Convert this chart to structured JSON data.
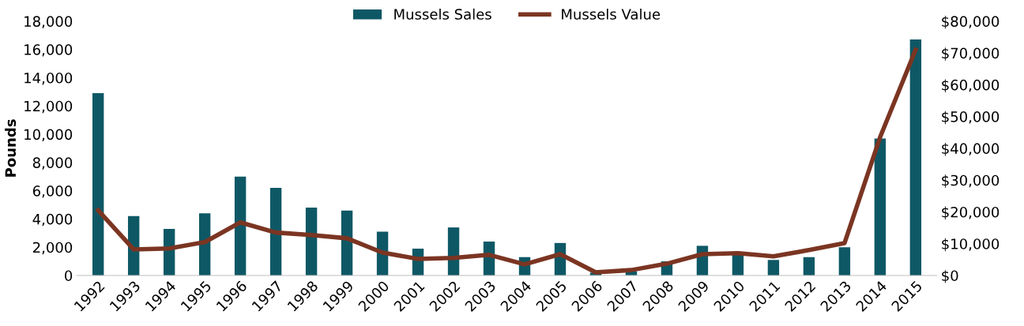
{
  "chart_data": {
    "type": "bar",
    "ylabel": "Pounds",
    "categories": [
      "1992",
      "1993",
      "1994",
      "1995",
      "1996",
      "1997",
      "1998",
      "1999",
      "2000",
      "2001",
      "2002",
      "2003",
      "2004",
      "2005",
      "2006",
      "2007",
      "2008",
      "2009",
      "2010",
      "2011",
      "2012",
      "2013",
      "2014",
      "2015"
    ],
    "series": [
      {
        "name": "Mussels Sales",
        "color": "#0e5866",
        "values": [
          12900,
          4200,
          3300,
          4400,
          7000,
          6200,
          4800,
          4600,
          3100,
          1900,
          3400,
          2400,
          1300,
          2300,
          200,
          300,
          1000,
          2100,
          1600,
          1100,
          1300,
          2000,
          9700,
          16700
        ]
      },
      {
        "name": "Mussels Value",
        "type": "line",
        "axis": "y2",
        "color": "#7b3522",
        "values": [
          20500,
          8200,
          8500,
          10500,
          16700,
          13500,
          12700,
          11700,
          7200,
          5200,
          5500,
          6500,
          3500,
          6700,
          1000,
          1700,
          3700,
          6700,
          7000,
          6000,
          8000,
          10200,
          43500,
          71000
        ]
      }
    ],
    "ylim": [
      0,
      18000
    ],
    "yticks": [
      {
        "value": 0,
        "label": "0"
      },
      {
        "value": 2000,
        "label": "2,000"
      },
      {
        "value": 4000,
        "label": "4,000"
      },
      {
        "value": 6000,
        "label": "6,000"
      },
      {
        "value": 8000,
        "label": "8,000"
      },
      {
        "value": 10000,
        "label": "10,000"
      },
      {
        "value": 12000,
        "label": "12,000"
      },
      {
        "value": 14000,
        "label": "14,000"
      },
      {
        "value": 16000,
        "label": "16,000"
      },
      {
        "value": 18000,
        "label": "18,000"
      }
    ],
    "y2lim": [
      0,
      80000
    ],
    "y2ticks": [
      {
        "value": 0,
        "label": "$0"
      },
      {
        "value": 10000,
        "label": "$10,000"
      },
      {
        "value": 20000,
        "label": "$20,000"
      },
      {
        "value": 30000,
        "label": "$30,000"
      },
      {
        "value": 40000,
        "label": "$40,000"
      },
      {
        "value": 50000,
        "label": "$50,000"
      },
      {
        "value": 60000,
        "label": "$60,000"
      },
      {
        "value": 70000,
        "label": "$70,000"
      },
      {
        "value": 80000,
        "label": "$80,000"
      }
    ],
    "legend": "top",
    "grid": false
  }
}
